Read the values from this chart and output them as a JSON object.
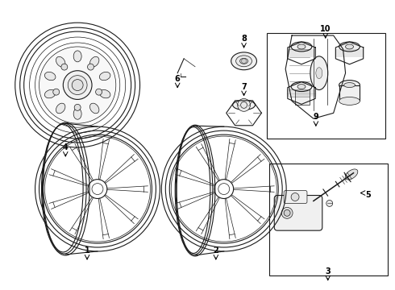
{
  "background_color": "#ffffff",
  "line_color": "#1a1a1a",
  "fig_width": 4.9,
  "fig_height": 3.6,
  "dpi": 100
}
